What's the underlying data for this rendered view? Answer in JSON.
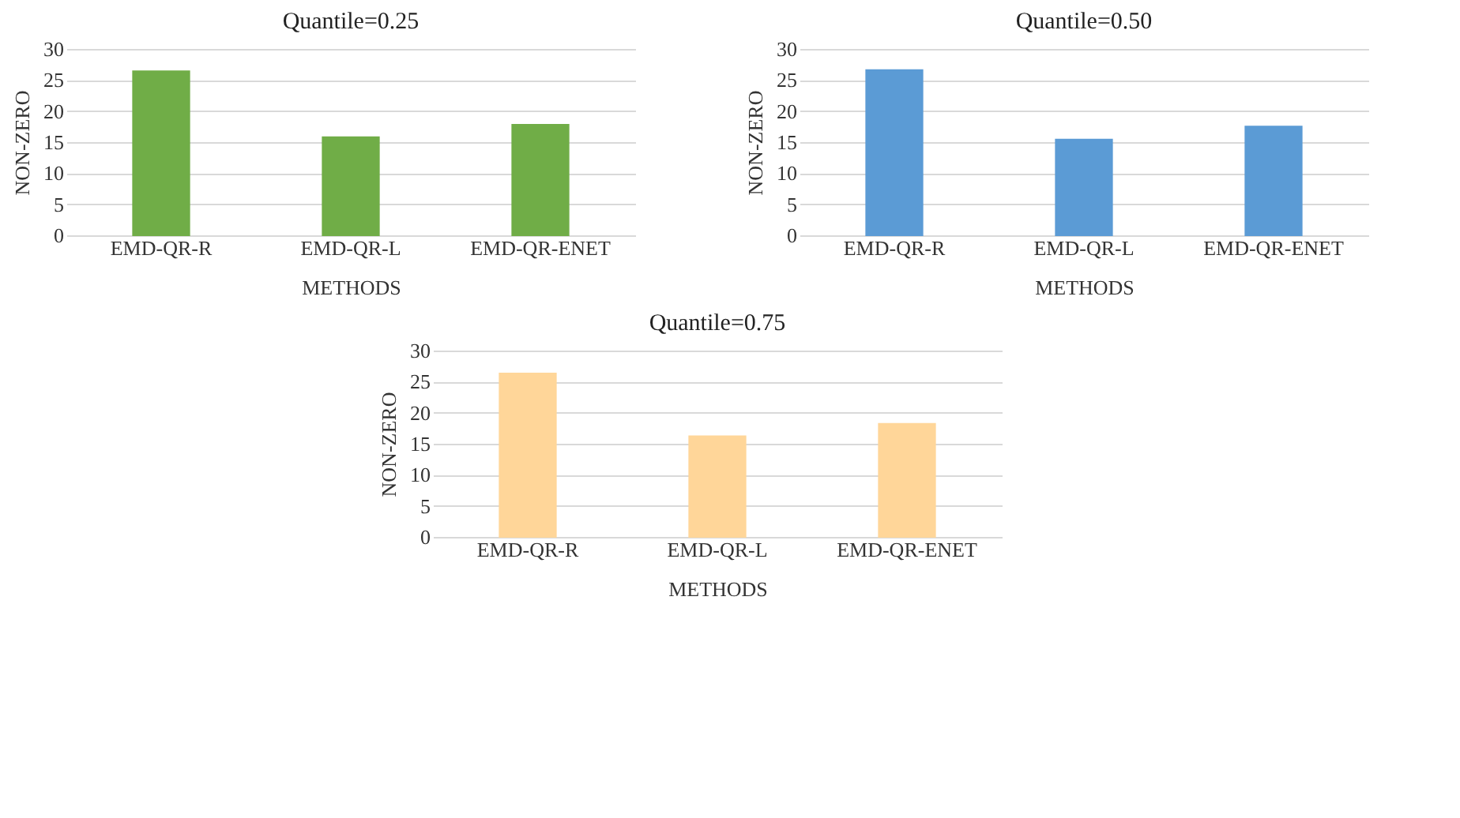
{
  "chart_data": [
    {
      "type": "bar",
      "title": "Quantile=0.25",
      "xlabel": "METHODS",
      "ylabel": "NON-ZERO",
      "categories": [
        "EMD-QR-R",
        "EMD-QR-L",
        "EMD-QR-ENET"
      ],
      "values": [
        26.4,
        15.8,
        17.8
      ],
      "color": "#70ad47",
      "ylim": [
        0,
        30
      ],
      "yticks": [
        0,
        5,
        10,
        15,
        20,
        25,
        30
      ],
      "grid": "y"
    },
    {
      "type": "bar",
      "title": "Quantile=0.50",
      "xlabel": "METHODS",
      "ylabel": "NON-ZERO",
      "categories": [
        "EMD-QR-R",
        "EMD-QR-L",
        "EMD-QR-ENET"
      ],
      "values": [
        26.6,
        15.4,
        17.5
      ],
      "color": "#5b9bd5",
      "ylim": [
        0,
        30
      ],
      "yticks": [
        0,
        5,
        10,
        15,
        20,
        25,
        30
      ],
      "grid": "y"
    },
    {
      "type": "bar",
      "title": "Quantile=0.75",
      "xlabel": "METHODS",
      "ylabel": "NON-ZERO",
      "categories": [
        "EMD-QR-R",
        "EMD-QR-L",
        "EMD-QR-ENET"
      ],
      "values": [
        26.3,
        16.2,
        18.2
      ],
      "color": "#ffd699",
      "ylim": [
        0,
        30
      ],
      "yticks": [
        0,
        5,
        10,
        15,
        20,
        25,
        30
      ],
      "grid": "y"
    }
  ]
}
